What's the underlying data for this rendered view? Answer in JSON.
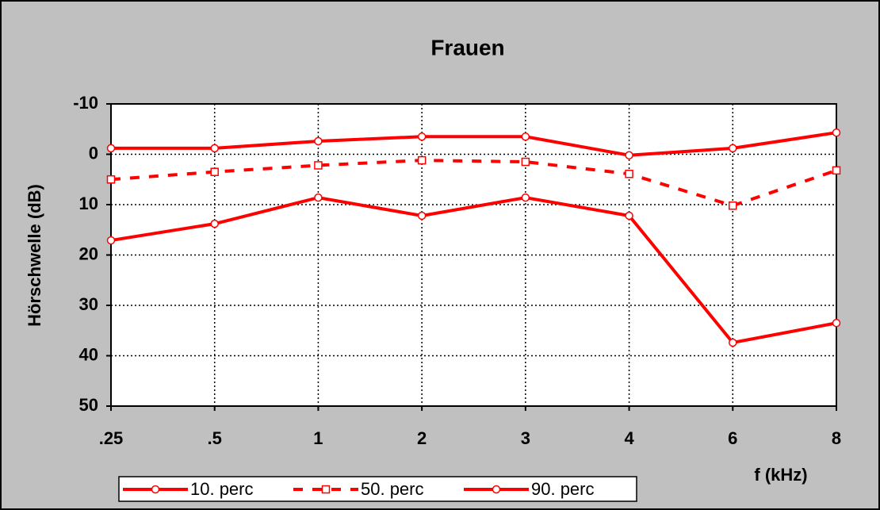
{
  "chart_data": {
    "type": "line",
    "title": "Frauen",
    "x_label": "f (kHz)",
    "y_label": "Hörschwelle  (dB)",
    "categories": [
      ".25",
      ".5",
      "1",
      "2",
      "3",
      "4",
      "6",
      "8"
    ],
    "series": [
      {
        "name": "10. perc",
        "color": "#ff0000",
        "marker": "circle",
        "dashed": false,
        "values": [
          -1.2,
          -1.2,
          -2.6,
          -3.5,
          -3.5,
          0.2,
          -1.2,
          -4.3
        ]
      },
      {
        "name": "50. perc",
        "color": "#ff0000",
        "marker": "square",
        "dashed": true,
        "values": [
          5,
          3.5,
          2.2,
          1.2,
          1.5,
          3.9,
          10.2,
          3.2
        ]
      },
      {
        "name": "90. perc",
        "color": "#ff0000",
        "marker": "circle",
        "dashed": false,
        "values": [
          17.1,
          13.8,
          8.6,
          12.2,
          8.6,
          12.2,
          37.4,
          33.5
        ]
      }
    ],
    "ylim": [
      -10,
      50
    ],
    "y_inverted": true,
    "yticks": [
      -10,
      0,
      10,
      20,
      30,
      40,
      50
    ],
    "grid": true,
    "legend": "bottom"
  }
}
